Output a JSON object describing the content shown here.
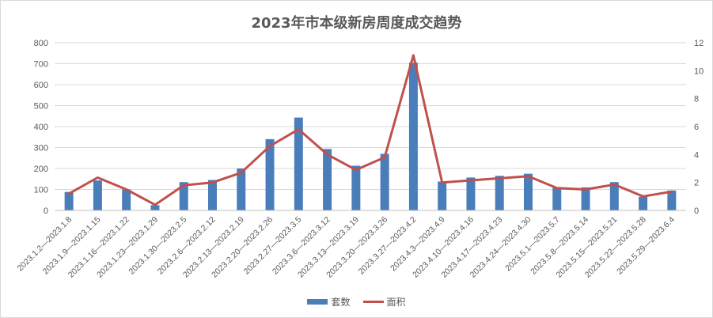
{
  "chart_data": {
    "type": "bar+line",
    "title": "2023年市本级新房周度成交趋势",
    "categories": [
      "2023.1.2—2023.1.8",
      "2023.1.9—2023.1.15",
      "2023.1.16—2023.1.22",
      "2023.1.23—2023.1.29",
      "2023.1.30—2023.2.5",
      "2023.2.6—2023.2.12",
      "2023.2.13—2023.2.19",
      "2023.2.20—2023.2.26",
      "2023.2.27—2023.3.5",
      "2023.3.6—2023.3.12",
      "2023.3.13—2023.3.19",
      "2023.3.20—2023.3.26",
      "2023.3.27—2023.4.2",
      "2023.4.3—2023.4.9",
      "2023.4.10—2023.4.16",
      "2023.4.17—2023.4.23",
      "2023.4.24—2023.4.30",
      "2023.5.1—2023.5.7",
      "2023.5.8—2023.5.14",
      "2023.5.15—2023.5.21",
      "2023.5.22—2023.5.28",
      "2023.5.29—2023.6.4"
    ],
    "series": [
      {
        "name": "套数",
        "type": "bar",
        "axis": "left",
        "color": "#4a7ebb",
        "values": [
          88,
          143,
          100,
          25,
          135,
          145,
          200,
          340,
          443,
          293,
          213,
          270,
          705,
          138,
          157,
          165,
          175,
          110,
          110,
          135,
          65,
          95
        ]
      },
      {
        "name": "面积",
        "type": "line",
        "axis": "right",
        "color": "#c0504d",
        "values": [
          1.2,
          2.35,
          1.5,
          0.4,
          1.8,
          2.0,
          2.7,
          4.6,
          5.8,
          4.0,
          2.9,
          3.8,
          11.1,
          2.0,
          2.15,
          2.3,
          2.45,
          1.6,
          1.5,
          1.85,
          1.0,
          1.35
        ]
      }
    ],
    "y_left": {
      "min": 0,
      "max": 800,
      "ticks": [
        0,
        100,
        200,
        300,
        400,
        500,
        600,
        700,
        800
      ]
    },
    "y_right": {
      "min": 0,
      "max": 12,
      "ticks": [
        0,
        2,
        4,
        6,
        8,
        10,
        12
      ]
    },
    "grid": true,
    "legend_position": "bottom"
  }
}
